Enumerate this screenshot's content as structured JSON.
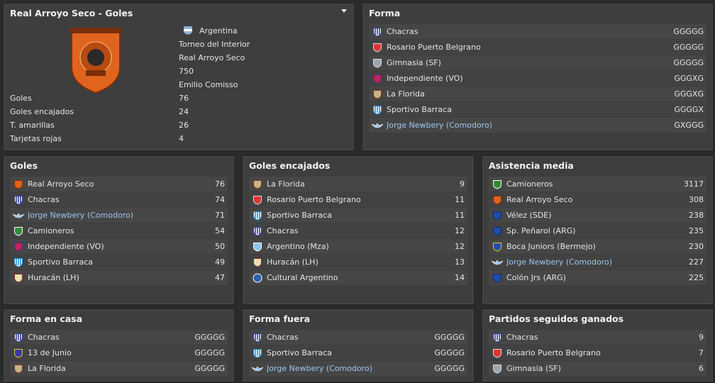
{
  "club_panel": {
    "title": "Real Arroyo Seco - Goles",
    "info": [
      "Argentina",
      "Torneo del Interior",
      "Real Arroyo Seco",
      "750",
      "Emilio Comisso"
    ],
    "stats": [
      {
        "label": "Goles",
        "value": "76"
      },
      {
        "label": "Goles encajados",
        "value": "24"
      },
      {
        "label": "T. amarillas",
        "value": "26"
      },
      {
        "label": "Tarjetas rojas",
        "value": "4"
      }
    ]
  },
  "forma": {
    "title": "Forma",
    "rows": [
      {
        "team": "Chacras",
        "value": "GGGGG",
        "icon": "chacras-crest-icon",
        "link": false
      },
      {
        "team": "Rosario Puerto Belgrano",
        "value": "GGGGG",
        "icon": "rosario-crest-icon",
        "link": false
      },
      {
        "team": "Gimnasia (SF)",
        "value": "GGGGG",
        "icon": "gimnasia-crest-icon",
        "link": false
      },
      {
        "team": "Independiente (VO)",
        "value": "GGGXG",
        "icon": "independiente-crest-icon",
        "link": false
      },
      {
        "team": "La Florida",
        "value": "GGGXG",
        "icon": "laflorida-crest-icon",
        "link": false
      },
      {
        "team": "Sportivo Barraca",
        "value": "GGGGX",
        "icon": "barraca-crest-icon",
        "link": false
      },
      {
        "team": "Jorge Newbery (Comodoro)",
        "value": "GXGGG",
        "icon": "newbery-crest-icon",
        "link": true
      }
    ]
  },
  "goles": {
    "title": "Goles",
    "rows": [
      {
        "team": "Real Arroyo Seco",
        "value": "76",
        "icon": "arroyo-crest-icon",
        "link": false
      },
      {
        "team": "Chacras",
        "value": "74",
        "icon": "chacras-crest-icon",
        "link": false
      },
      {
        "team": "Jorge Newbery (Comodoro)",
        "value": "71",
        "icon": "newbery-crest-icon",
        "link": true
      },
      {
        "team": "Camioneros",
        "value": "54",
        "icon": "camioneros-crest-icon",
        "link": false
      },
      {
        "team": "Independiente (VO)",
        "value": "50",
        "icon": "independiente-crest-icon",
        "link": false
      },
      {
        "team": "Sportivo Barraca",
        "value": "49",
        "icon": "barraca-crest-icon",
        "link": false
      },
      {
        "team": "Huracán (LH)",
        "value": "47",
        "icon": "huracan-crest-icon",
        "link": false
      }
    ]
  },
  "goles_encajados": {
    "title": "Goles encajados",
    "rows": [
      {
        "team": "La Florida",
        "value": "9",
        "icon": "laflorida-crest-icon",
        "link": false
      },
      {
        "team": "Rosario Puerto Belgrano",
        "value": "11",
        "icon": "rosario-crest-icon",
        "link": false
      },
      {
        "team": "Sportivo Barraca",
        "value": "11",
        "icon": "barraca-crest-icon",
        "link": false
      },
      {
        "team": "Chacras",
        "value": "12",
        "icon": "chacras-crest-icon",
        "link": false
      },
      {
        "team": "Argentino (Mza)",
        "value": "12",
        "icon": "argentino-crest-icon",
        "link": false
      },
      {
        "team": "Huracán (LH)",
        "value": "13",
        "icon": "huracan-crest-icon",
        "link": false
      },
      {
        "team": "Cultural Argentino",
        "value": "14",
        "icon": "cultural-crest-icon",
        "link": false
      }
    ]
  },
  "asistencia": {
    "title": "Asistencia media",
    "rows": [
      {
        "team": "Camioneros",
        "value": "3117",
        "icon": "camioneros-crest-icon",
        "link": false
      },
      {
        "team": "Real Arroyo Seco",
        "value": "308",
        "icon": "arroyo-crest-icon",
        "link": false
      },
      {
        "team": "Vélez (SDE)",
        "value": "238",
        "icon": "velez-crest-icon",
        "link": false
      },
      {
        "team": "Sp. Peñarol (ARG)",
        "value": "235",
        "icon": "penarol-crest-icon",
        "link": false
      },
      {
        "team": "Boca Juniors (Bermejo)",
        "value": "230",
        "icon": "boca-crest-icon",
        "link": false
      },
      {
        "team": "Jorge Newbery (Comodoro)",
        "value": "227",
        "icon": "newbery-crest-icon",
        "link": true
      },
      {
        "team": "Colón Jrs (ARG)",
        "value": "225",
        "icon": "colon-crest-icon",
        "link": false
      }
    ]
  },
  "forma_casa": {
    "title": "Forma en casa",
    "rows": [
      {
        "team": "Chacras",
        "value": "GGGGG",
        "icon": "chacras-crest-icon",
        "link": false
      },
      {
        "team": "13 de Junio",
        "value": "GGGGG",
        "icon": "junio-crest-icon",
        "link": false
      },
      {
        "team": "La Florida",
        "value": "GGGGG",
        "icon": "laflorida-crest-icon",
        "link": false
      }
    ]
  },
  "forma_fuera": {
    "title": "Forma fuera",
    "rows": [
      {
        "team": "Chacras",
        "value": "GGGGG",
        "icon": "chacras-crest-icon",
        "link": false
      },
      {
        "team": "Sportivo Barraca",
        "value": "GGGGG",
        "icon": "barraca-crest-icon",
        "link": false
      },
      {
        "team": "Jorge Newbery (Comodoro)",
        "value": "GGGGG",
        "icon": "newbery-crest-icon",
        "link": true
      }
    ]
  },
  "seguidos": {
    "title": "Partidos seguidos ganados",
    "rows": [
      {
        "team": "Chacras",
        "value": "9",
        "icon": "chacras-crest-icon",
        "link": false
      },
      {
        "team": "Rosario Puerto Belgrano",
        "value": "7",
        "icon": "rosario-crest-icon",
        "link": false
      },
      {
        "team": "Gimnasia (SF)",
        "value": "6",
        "icon": "gimnasia-crest-icon",
        "link": false
      }
    ]
  },
  "colors": {
    "panel_bg": "#3e3e3e",
    "row_bg": "#464646",
    "link": "#9cc7f0",
    "club_orange": "#e0641e"
  }
}
